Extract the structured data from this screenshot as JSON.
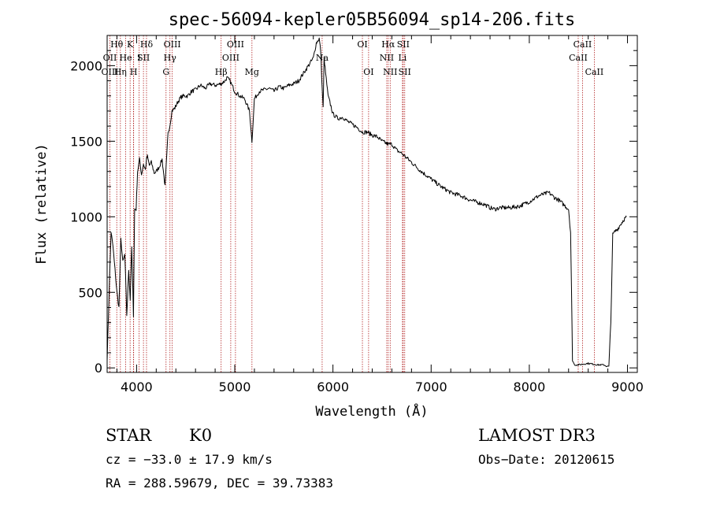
{
  "chart_data": {
    "type": "line",
    "title": "spec-56094-kepler05B56094_sp14-206.fits",
    "xlabel": "Wavelength (Å)",
    "ylabel": "Flux (relative)",
    "xlim": [
      3700,
      9100
    ],
    "ylim": [
      -30,
      2200
    ],
    "xticks": [
      4000,
      5000,
      6000,
      7000,
      8000,
      9000
    ],
    "yticks": [
      0,
      500,
      1000,
      1500,
      2000
    ],
    "grid": false,
    "series": [
      {
        "name": "spectrum",
        "x": [
          3700,
          3720,
          3740,
          3760,
          3780,
          3800,
          3820,
          3840,
          3860,
          3880,
          3900,
          3920,
          3935,
          3950,
          3968,
          3980,
          3995,
          4010,
          4030,
          4050,
          4070,
          4090,
          4101,
          4110,
          4130,
          4150,
          4180,
          4200,
          4230,
          4260,
          4290,
          4320,
          4340,
          4360,
          4390,
          4420,
          4450,
          4480,
          4520,
          4560,
          4600,
          4650,
          4700,
          4750,
          4800,
          4861,
          4900,
          4920,
          4950,
          5000,
          5050,
          5100,
          5150,
          5175,
          5200,
          5250,
          5300,
          5350,
          5400,
          5450,
          5500,
          5550,
          5600,
          5650,
          5700,
          5750,
          5800,
          5830,
          5860,
          5875,
          5890,
          5900,
          5910,
          5925,
          5950,
          5980,
          6000,
          6050,
          6100,
          6150,
          6200,
          6250,
          6300,
          6350,
          6400,
          6450,
          6500,
          6563,
          6600,
          6650,
          6700,
          6750,
          6800,
          6850,
          6900,
          7000,
          7100,
          7200,
          7300,
          7400,
          7500,
          7550,
          7600,
          7650,
          7700,
          7800,
          7900,
          8000,
          8050,
          8100,
          8150,
          8200,
          8250,
          8300,
          8350,
          8400,
          8420,
          8430,
          8440,
          8460,
          8500,
          8600,
          8700,
          8760,
          8790,
          8810,
          8830,
          8850,
          8870,
          8900,
          8930,
          8960,
          8990
        ],
        "values": [
          50,
          500,
          900,
          800,
          650,
          500,
          400,
          850,
          700,
          750,
          350,
          650,
          450,
          800,
          350,
          1050,
          1050,
          1300,
          1380,
          1280,
          1350,
          1310,
          1380,
          1400,
          1340,
          1360,
          1290,
          1300,
          1330,
          1380,
          1200,
          1550,
          1610,
          1700,
          1720,
          1760,
          1790,
          1800,
          1800,
          1830,
          1840,
          1870,
          1850,
          1880,
          1870,
          1880,
          1900,
          1920,
          1900,
          1830,
          1800,
          1780,
          1700,
          1500,
          1780,
          1830,
          1840,
          1850,
          1830,
          1860,
          1850,
          1870,
          1880,
          1900,
          1950,
          2000,
          2050,
          2150,
          2180,
          2100,
          1850,
          1720,
          2050,
          1950,
          1800,
          1730,
          1680,
          1650,
          1660,
          1630,
          1610,
          1590,
          1560,
          1560,
          1540,
          1530,
          1500,
          1480,
          1480,
          1440,
          1420,
          1390,
          1360,
          1330,
          1300,
          1250,
          1200,
          1160,
          1140,
          1110,
          1090,
          1080,
          1060,
          1050,
          1060,
          1060,
          1070,
          1100,
          1120,
          1140,
          1150,
          1160,
          1130,
          1110,
          1080,
          1050,
          900,
          500,
          50,
          20,
          20,
          30,
          20,
          20,
          10,
          10,
          300,
          880,
          900,
          920,
          950,
          980,
          1000
        ]
      }
    ],
    "line_markers": {
      "wavelengths": [
        3728,
        3798,
        3835,
        3889,
        3934,
        3968,
        3970,
        4026,
        4070,
        4101,
        4300,
        4340,
        4363,
        4861,
        4959,
        5007,
        5175,
        5890,
        6300,
        6363,
        6548,
        6563,
        6583,
        6708,
        6716,
        6731,
        8498,
        8542,
        8662
      ],
      "labels": [
        {
          "text": "Hθ",
          "x": 3798,
          "row": 1
        },
        {
          "text": "K",
          "x": 3934,
          "row": 1
        },
        {
          "text": "Hδ",
          "x": 4101,
          "row": 1
        },
        {
          "text": "OIII",
          "x": 4363,
          "row": 1
        },
        {
          "text": "OIII",
          "x": 5007,
          "row": 1
        },
        {
          "text": "OI",
          "x": 6300,
          "row": 1
        },
        {
          "text": "Hα",
          "x": 6563,
          "row": 1
        },
        {
          "text": "SII",
          "x": 6716,
          "row": 1
        },
        {
          "text": "CaII",
          "x": 8542,
          "row": 1
        },
        {
          "text": "OII",
          "x": 3728,
          "row": 2
        },
        {
          "text": "He",
          "x": 3889,
          "row": 2
        },
        {
          "text": "I",
          "x": 4026,
          "row": 2
        },
        {
          "text": "SII",
          "x": 4070,
          "row": 2
        },
        {
          "text": "Hγ",
          "x": 4340,
          "row": 2
        },
        {
          "text": "OIII",
          "x": 4959,
          "row": 2
        },
        {
          "text": "Na",
          "x": 5890,
          "row": 2
        },
        {
          "text": "NII",
          "x": 6548,
          "row": 2
        },
        {
          "text": "Li",
          "x": 6708,
          "row": 2
        },
        {
          "text": "CaII",
          "x": 8498,
          "row": 2
        },
        {
          "text": "OIII",
          "x": 3728,
          "row": 3
        },
        {
          "text": "Hη",
          "x": 3835,
          "row": 3
        },
        {
          "text": "H",
          "x": 3970,
          "row": 3
        },
        {
          "text": "G",
          "x": 4300,
          "row": 3
        },
        {
          "text": "Hβ",
          "x": 4861,
          "row": 3
        },
        {
          "text": "Mg",
          "x": 5175,
          "row": 3
        },
        {
          "text": "OI",
          "x": 6363,
          "row": 3
        },
        {
          "text": "NII",
          "x": 6583,
          "row": 3
        },
        {
          "text": "SII",
          "x": 6731,
          "row": 3
        },
        {
          "text": "CaII",
          "x": 8662,
          "row": 3
        }
      ]
    }
  },
  "info": {
    "class_label": "STAR",
    "subclass": "K0",
    "survey": "LAMOST DR3",
    "redshift": "cz = −33.0 ± 17.9 km/s",
    "obs_date": "Obs−Date: 20120615",
    "coords": "RA = 288.59679, DEC =  39.73383"
  },
  "colors": {
    "spectrum": "#000000",
    "marker": "#b22222",
    "axis": "#000000"
  }
}
